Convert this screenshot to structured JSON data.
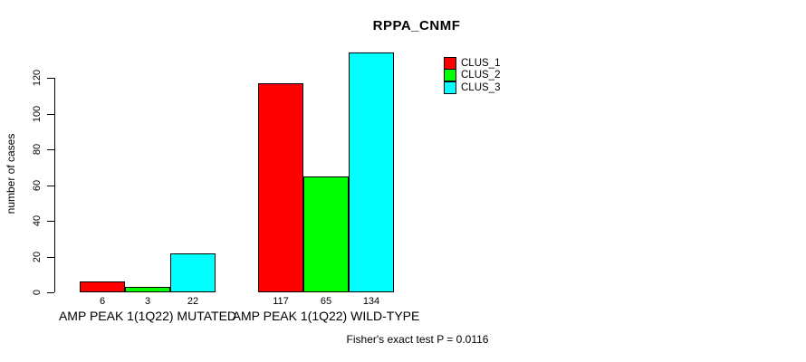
{
  "title": "RPPA_CNMF",
  "ylabel": "number of cases",
  "footer": "Fisher's exact test P = 0.0116",
  "legend": {
    "items": [
      {
        "label": "CLUS_1",
        "color": "#FF0000"
      },
      {
        "label": "CLUS_2",
        "color": "#00FF00"
      },
      {
        "label": "CLUS_3",
        "color": "#00FFFF"
      }
    ]
  },
  "chart_data": {
    "type": "bar",
    "title": "RPPA_CNMF",
    "xlabel": "",
    "ylabel": "number of cases",
    "yticks": [
      0,
      20,
      40,
      60,
      80,
      100,
      120
    ],
    "ylim": [
      0,
      134
    ],
    "grid": false,
    "legend_position": "top-right",
    "categories": [
      "AMP PEAK 1(1Q22) MUTATED",
      "AMP PEAK 1(1Q22) WILD-TYPE"
    ],
    "series": [
      {
        "name": "CLUS_1",
        "color": "#FF0000",
        "values": [
          6,
          117
        ]
      },
      {
        "name": "CLUS_2",
        "color": "#00FF00",
        "values": [
          3,
          65
        ]
      },
      {
        "name": "CLUS_3",
        "color": "#00FFFF",
        "values": [
          22,
          134
        ]
      }
    ],
    "bar_value_labels": [
      [
        6,
        3,
        22
      ],
      [
        117,
        65,
        134
      ]
    ],
    "annotation": "Fisher's exact test P = 0.0116"
  }
}
